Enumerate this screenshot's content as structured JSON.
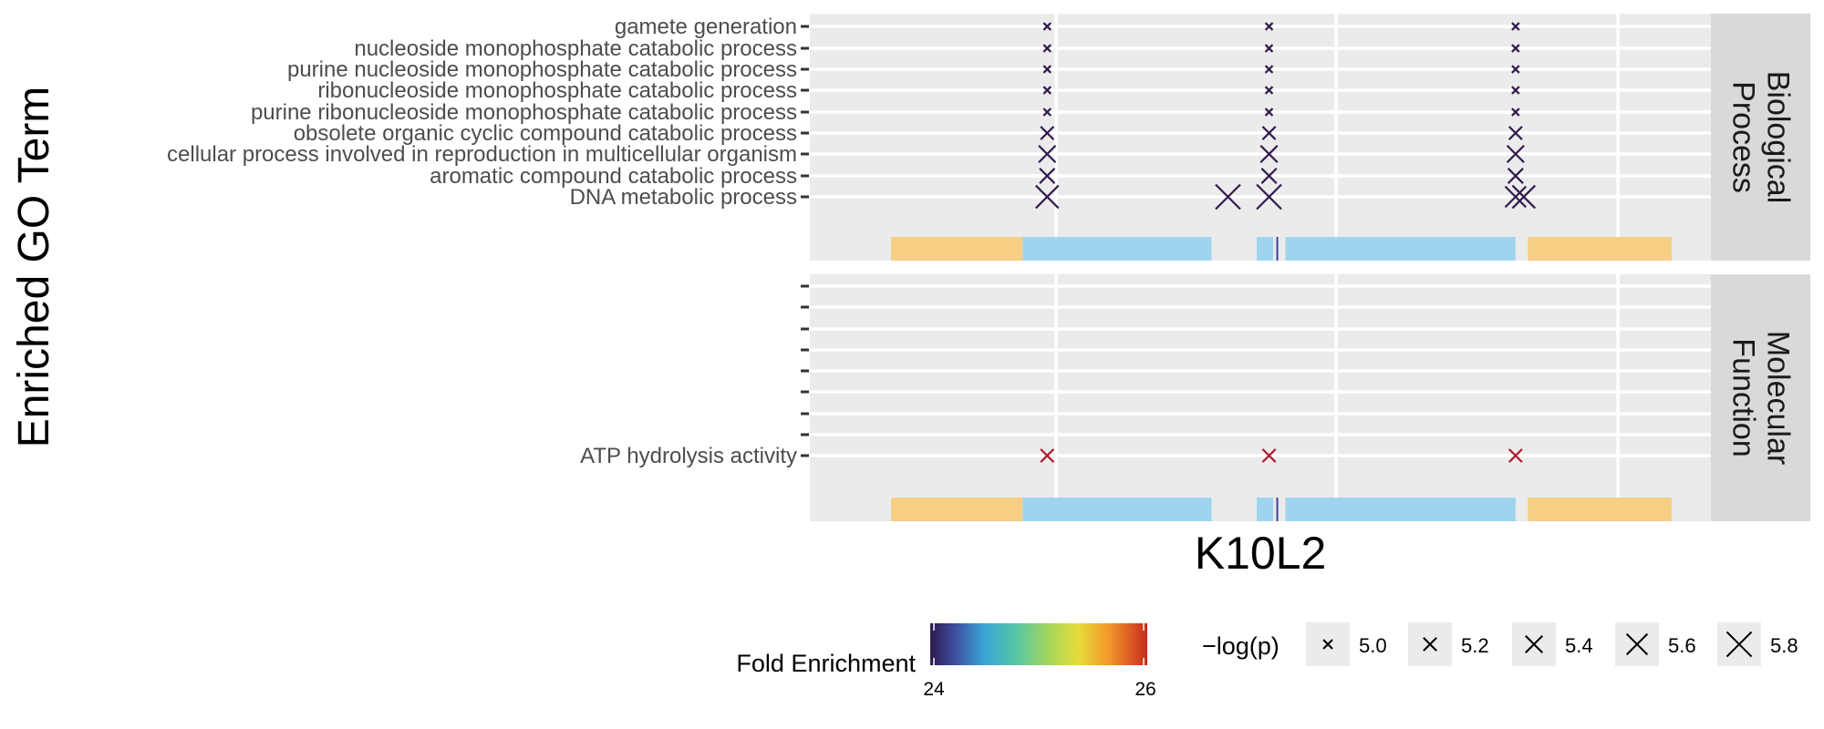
{
  "chart_data": {
    "type": "scatter",
    "title": "",
    "xlabel": "K10L2",
    "ylabel": "Enriched GO Term",
    "facets": [
      {
        "name": "Biological Process",
        "strip_lines": [
          "Biological",
          "Process"
        ],
        "terms": [
          "gamete generation",
          "nucleoside monophosphate catabolic process",
          "purine nucleoside monophosphate catabolic process",
          "ribonucleoside monophosphate catabolic process",
          "purine ribonucleoside monophosphate catabolic process",
          "obsolete organic cyclic compound catabolic process",
          "cellular process involved in reproduction in multicellular organism",
          "aromatic compound catabolic process",
          "DNA metabolic process"
        ],
        "points": [
          {
            "term": "gamete generation",
            "position": 0.24,
            "neglog_p": 4.9,
            "fold_enrichment": 24.1
          },
          {
            "term": "gamete generation",
            "position": 0.51,
            "neglog_p": 4.9,
            "fold_enrichment": 24.1
          },
          {
            "term": "gamete generation",
            "position": 0.81,
            "neglog_p": 4.9,
            "fold_enrichment": 24.1
          },
          {
            "term": "nucleoside monophosphate catabolic process",
            "position": 0.24,
            "neglog_p": 4.9,
            "fold_enrichment": 24.1
          },
          {
            "term": "nucleoside monophosphate catabolic process",
            "position": 0.51,
            "neglog_p": 4.9,
            "fold_enrichment": 24.1
          },
          {
            "term": "nucleoside monophosphate catabolic process",
            "position": 0.81,
            "neglog_p": 4.9,
            "fold_enrichment": 24.1
          },
          {
            "term": "purine nucleoside monophosphate catabolic process",
            "position": 0.24,
            "neglog_p": 4.9,
            "fold_enrichment": 24.1
          },
          {
            "term": "purine nucleoside monophosphate catabolic process",
            "position": 0.51,
            "neglog_p": 4.9,
            "fold_enrichment": 24.1
          },
          {
            "term": "purine nucleoside monophosphate catabolic process",
            "position": 0.81,
            "neglog_p": 4.9,
            "fold_enrichment": 24.1
          },
          {
            "term": "ribonucleoside monophosphate catabolic process",
            "position": 0.24,
            "neglog_p": 4.9,
            "fold_enrichment": 24.1
          },
          {
            "term": "ribonucleoside monophosphate catabolic process",
            "position": 0.51,
            "neglog_p": 4.9,
            "fold_enrichment": 24.1
          },
          {
            "term": "ribonucleoside monophosphate catabolic process",
            "position": 0.81,
            "neglog_p": 4.9,
            "fold_enrichment": 24.1
          },
          {
            "term": "purine ribonucleoside monophosphate catabolic process",
            "position": 0.24,
            "neglog_p": 4.9,
            "fold_enrichment": 24.1
          },
          {
            "term": "purine ribonucleoside monophosphate catabolic process",
            "position": 0.51,
            "neglog_p": 4.9,
            "fold_enrichment": 24.1
          },
          {
            "term": "purine ribonucleoside monophosphate catabolic process",
            "position": 0.81,
            "neglog_p": 4.9,
            "fold_enrichment": 24.1
          },
          {
            "term": "obsolete organic cyclic compound catabolic process",
            "position": 0.24,
            "neglog_p": 5.2,
            "fold_enrichment": 24.1
          },
          {
            "term": "obsolete organic cyclic compound catabolic process",
            "position": 0.51,
            "neglog_p": 5.2,
            "fold_enrichment": 24.1
          },
          {
            "term": "obsolete organic cyclic compound catabolic process",
            "position": 0.81,
            "neglog_p": 5.2,
            "fold_enrichment": 24.1
          },
          {
            "term": "cellular process involved in reproduction in multicellular organism",
            "position": 0.24,
            "neglog_p": 5.4,
            "fold_enrichment": 24.1
          },
          {
            "term": "cellular process involved in reproduction in multicellular organism",
            "position": 0.51,
            "neglog_p": 5.4,
            "fold_enrichment": 24.1
          },
          {
            "term": "cellular process involved in reproduction in multicellular organism",
            "position": 0.81,
            "neglog_p": 5.4,
            "fold_enrichment": 24.1
          },
          {
            "term": "aromatic compound catabolic process",
            "position": 0.24,
            "neglog_p": 5.3,
            "fold_enrichment": 24.1
          },
          {
            "term": "aromatic compound catabolic process",
            "position": 0.51,
            "neglog_p": 5.3,
            "fold_enrichment": 24.1
          },
          {
            "term": "aromatic compound catabolic process",
            "position": 0.81,
            "neglog_p": 5.3,
            "fold_enrichment": 24.1
          },
          {
            "term": "DNA metabolic process",
            "position": 0.24,
            "neglog_p": 5.7,
            "fold_enrichment": 24.1
          },
          {
            "term": "DNA metabolic process",
            "position": 0.46,
            "neglog_p": 5.8,
            "fold_enrichment": 24.1
          },
          {
            "term": "DNA metabolic process",
            "position": 0.51,
            "neglog_p": 5.8,
            "fold_enrichment": 24.1
          },
          {
            "term": "DNA metabolic process",
            "position": 0.81,
            "neglog_p": 5.6,
            "fold_enrichment": 24.1
          },
          {
            "term": "DNA metabolic process",
            "position": 0.82,
            "neglog_p": 5.7,
            "fold_enrichment": 24.1
          }
        ]
      },
      {
        "name": "Molecular Function",
        "strip_lines": [
          "Molecular",
          "Function"
        ],
        "terms": [
          "",
          "",
          "",
          "",
          "",
          "",
          "",
          "",
          "ATP hydrolysis activity"
        ],
        "points": [
          {
            "term": "ATP hydrolysis activity",
            "position": 0.24,
            "neglog_p": 5.2,
            "fold_enrichment": 25.9
          },
          {
            "term": "ATP hydrolysis activity",
            "position": 0.51,
            "neglog_p": 5.2,
            "fold_enrichment": 25.9
          },
          {
            "term": "ATP hydrolysis activity",
            "position": 0.81,
            "neglog_p": 5.2,
            "fold_enrichment": 25.9
          }
        ]
      }
    ],
    "domain_track": [
      {
        "from": 0.05,
        "to": 0.21,
        "color": "#f6cf85"
      },
      {
        "from": 0.21,
        "to": 0.44,
        "color": "#9fd4ee"
      },
      {
        "from": 0.495,
        "to": 0.515,
        "color": "#9fd4ee"
      },
      {
        "from": 0.53,
        "to": 0.81,
        "color": "#9fd4ee"
      },
      {
        "from": 0.825,
        "to": 1.0,
        "color": "#f6cf85"
      }
    ],
    "domain_marks": [
      {
        "position": 0.52,
        "color": "#3b3f9e"
      }
    ],
    "color_legend": {
      "title": "Fold Enrichment",
      "min": 24,
      "max": 26,
      "ticks": [
        "24",
        "26"
      ]
    },
    "size_legend": {
      "title": "−log(p)",
      "values": [
        5.0,
        5.2,
        5.4,
        5.6,
        5.8
      ],
      "labels": [
        "5.0",
        "5.2",
        "5.4",
        "5.6",
        "5.8"
      ]
    },
    "colors": {
      "panel_bg": "#ebebeb",
      "grid": "#ffffff",
      "strip_bg": "#d9d9d9",
      "low": "#2b1a4f",
      "high": "#b2182b"
    },
    "grid": true,
    "legend_position": "bottom"
  }
}
